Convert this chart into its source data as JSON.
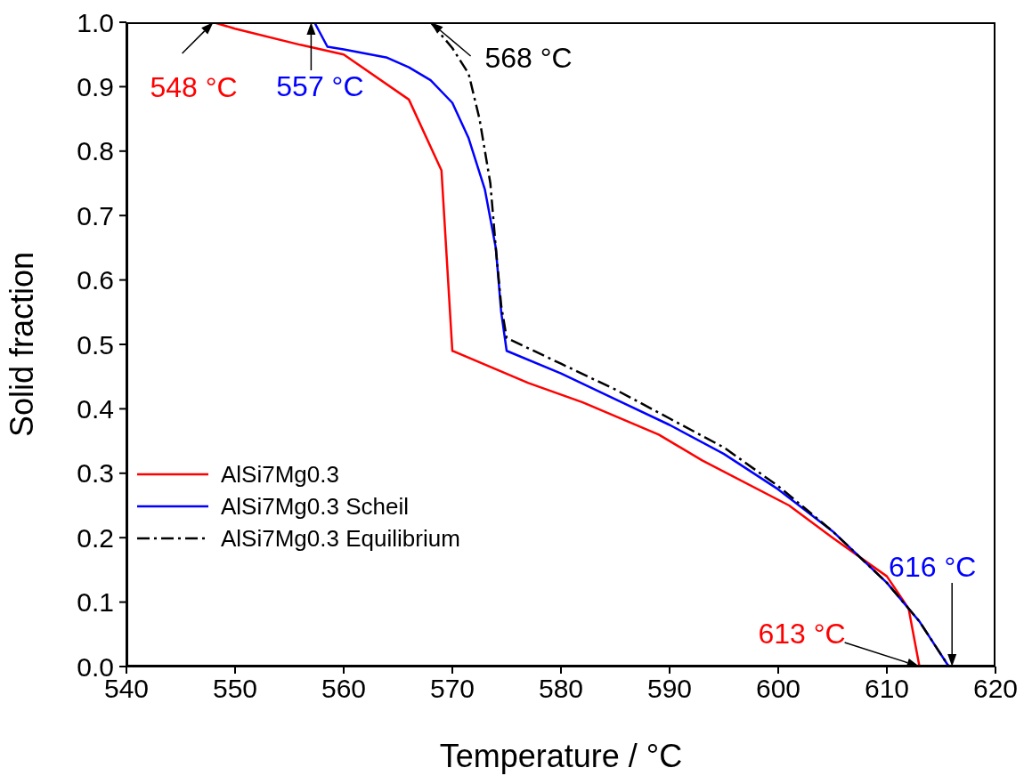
{
  "chart_data": {
    "type": "line",
    "xlabel": "Temperature / °C",
    "ylabel": "Solid fraction",
    "xlim": [
      540,
      620
    ],
    "xticks": [
      540,
      550,
      560,
      570,
      580,
      590,
      600,
      610,
      620
    ],
    "ylim": [
      0,
      1
    ],
    "yticks": [
      {
        "value": 0,
        "label": "0.0"
      },
      {
        "value": 0.1,
        "label": "0.1"
      },
      {
        "value": 0.2,
        "label": "0.2"
      },
      {
        "value": 0.3,
        "label": "0.3"
      },
      {
        "value": 0.4,
        "label": "0.4"
      },
      {
        "value": 0.5,
        "label": "0.5"
      },
      {
        "value": 0.6,
        "label": "0.6"
      },
      {
        "value": 0.7,
        "label": "0.7"
      },
      {
        "value": 0.8,
        "label": "0.8"
      },
      {
        "value": 0.9,
        "label": "0.9"
      },
      {
        "value": 1,
        "label": "1.0"
      }
    ],
    "legend": "bottom left",
    "marker": "none",
    "series": [
      {
        "name": "AlSi7Mg0.3",
        "color": "#ff0000",
        "line_style": "solid",
        "x": [
          548,
          550,
          556,
          560,
          566,
          569,
          570,
          577,
          582,
          589,
          593,
          601,
          605,
          610,
          612,
          613
        ],
        "values": [
          1.0,
          0.99,
          0.965,
          0.95,
          0.88,
          0.77,
          0.49,
          0.44,
          0.41,
          0.36,
          0.32,
          0.25,
          0.2,
          0.14,
          0.09,
          0.0
        ]
      },
      {
        "name": "AlSi7Mg0.3 Scheil",
        "color": "#0000ff",
        "line_style": "solid",
        "x": [
          557.3,
          558.5,
          560,
          564,
          566,
          568,
          570,
          571.5,
          573,
          574,
          574.5,
          575,
          580,
          585,
          590,
          595,
          600,
          605,
          610,
          613,
          615.7
        ],
        "values": [
          1.0,
          0.962,
          0.958,
          0.945,
          0.93,
          0.91,
          0.875,
          0.82,
          0.74,
          0.65,
          0.55,
          0.49,
          0.455,
          0.415,
          0.375,
          0.33,
          0.275,
          0.21,
          0.13,
          0.07,
          0.0
        ]
      },
      {
        "name": "AlSi7Mg0.3 Equilibrium",
        "color": "#000000",
        "line_style": "dashed",
        "x": [
          568,
          570,
          571.5,
          572.5,
          573.5,
          574,
          574.5,
          575,
          580,
          585,
          590,
          595,
          600,
          605,
          610,
          613,
          615.7
        ],
        "values": [
          1.0,
          0.96,
          0.92,
          0.85,
          0.75,
          0.65,
          0.56,
          0.51,
          0.47,
          0.43,
          0.385,
          0.34,
          0.28,
          0.21,
          0.13,
          0.07,
          0.0
        ]
      }
    ],
    "annotations": [
      {
        "text": "548 °C",
        "x": 548,
        "y": 1.0
      },
      {
        "text": "557 °C",
        "x": 557,
        "y": 1.0
      },
      {
        "text": "568 °C",
        "x": 568,
        "y": 1.0
      },
      {
        "text": "613 °C",
        "x": 613,
        "y": 0
      },
      {
        "text": "616 °C",
        "x": 616,
        "y": 0
      }
    ]
  }
}
